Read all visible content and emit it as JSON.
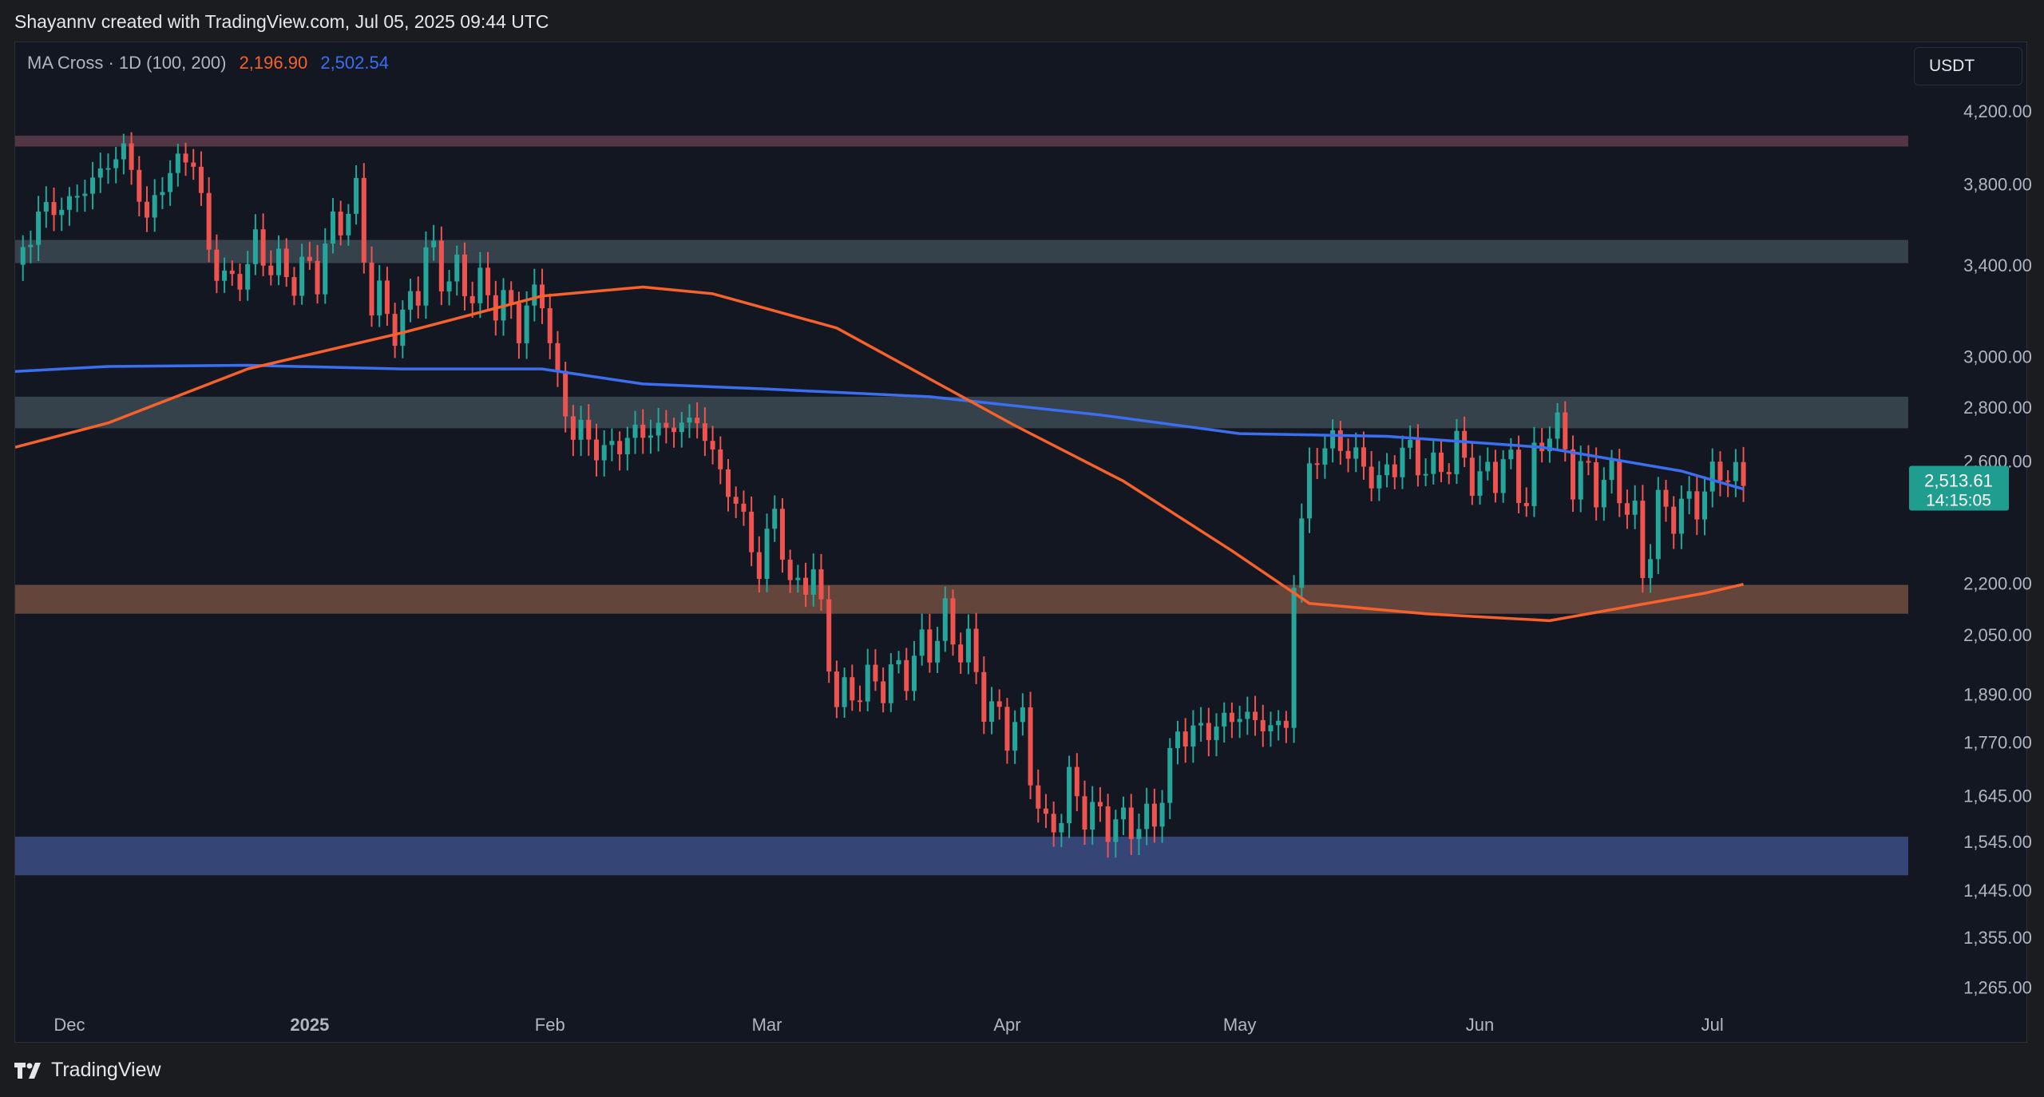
{
  "header": {
    "text": "Shayannv created with TradingView.com, Jul 05, 2025 09:44 UTC"
  },
  "indicator": {
    "name": "MA Cross · 1D (100, 200)",
    "ma100_value": "2,196.90",
    "ma200_value": "2,502.54"
  },
  "currency": "USDT",
  "footer": {
    "brand": "TradingView"
  },
  "colors": {
    "up": "#26a69a",
    "down": "#ef5350",
    "ma100": "#f7622c",
    "ma200": "#3c6ef0",
    "price_label": "#1f9d8f"
  },
  "chart_data": {
    "type": "candlestick",
    "y_scale": "log",
    "ylim": [
      1200,
      4450
    ],
    "x_range": [
      "2024-11-24",
      "2025-08-10"
    ],
    "y_ticks": [
      "4,200.00",
      "3,800.00",
      "3,400.00",
      "3,000.00",
      "2,800.00",
      "2,600.00",
      "2,200.00",
      "2,050.00",
      "1,890.00",
      "1,770.00",
      "1,645.00",
      "1,545.00",
      "1,445.00",
      "1,355.00",
      "1,265.00"
    ],
    "x_ticks": [
      {
        "label": "Dec",
        "date": "2024-12-01",
        "bold": false
      },
      {
        "label": "2025",
        "date": "2025-01-01",
        "bold": true
      },
      {
        "label": "Feb",
        "date": "2025-02-01",
        "bold": false
      },
      {
        "label": "Mar",
        "date": "2025-03-01",
        "bold": false
      },
      {
        "label": "Apr",
        "date": "2025-04-01",
        "bold": false
      },
      {
        "label": "May",
        "date": "2025-05-01",
        "bold": false
      },
      {
        "label": "Jun",
        "date": "2025-06-01",
        "bold": false
      },
      {
        "label": "Jul",
        "date": "2025-07-01",
        "bold": false
      }
    ],
    "zones": [
      {
        "low": 4000,
        "high": 4060,
        "color": "#5a3a4a"
      },
      {
        "low": 3410,
        "high": 3520,
        "color": "#3a4750"
      },
      {
        "low": 2720,
        "high": 2840,
        "color": "#3a4750"
      },
      {
        "low": 2110,
        "high": 2195,
        "color": "#6e4a3e"
      },
      {
        "low": 1475,
        "high": 1555,
        "color": "#394a80"
      }
    ],
    "price_label": {
      "price": "2,513.61",
      "countdown": "14:15:05",
      "value": 2513.61
    },
    "candle_closes": [
      {
        "date": "2024-11-24",
        "close": 3360
      },
      {
        "date": "2024-11-27",
        "close": 3650
      },
      {
        "date": "2024-12-01",
        "close": 3700
      },
      {
        "date": "2024-12-05",
        "close": 3860
      },
      {
        "date": "2024-12-08",
        "close": 3990
      },
      {
        "date": "2024-12-11",
        "close": 3620
      },
      {
        "date": "2024-12-14",
        "close": 3880
      },
      {
        "date": "2024-12-17",
        "close": 3950
      },
      {
        "date": "2024-12-19",
        "close": 3450
      },
      {
        "date": "2024-12-22",
        "close": 3300
      },
      {
        "date": "2024-12-25",
        "close": 3480
      },
      {
        "date": "2024-12-29",
        "close": 3350
      },
      {
        "date": "2025-01-02",
        "close": 3380
      },
      {
        "date": "2025-01-05",
        "close": 3650
      },
      {
        "date": "2025-01-07",
        "close": 3700
      },
      {
        "date": "2025-01-09",
        "close": 3250
      },
      {
        "date": "2025-01-13",
        "close": 3120
      },
      {
        "date": "2025-01-16",
        "close": 3450
      },
      {
        "date": "2025-01-19",
        "close": 3350
      },
      {
        "date": "2025-01-22",
        "close": 3300
      },
      {
        "date": "2025-01-25",
        "close": 3250
      },
      {
        "date": "2025-01-28",
        "close": 3150
      },
      {
        "date": "2025-01-31",
        "close": 3280
      },
      {
        "date": "2025-02-02",
        "close": 2870
      },
      {
        "date": "2025-02-04",
        "close": 2720
      },
      {
        "date": "2025-02-08",
        "close": 2630
      },
      {
        "date": "2025-02-12",
        "close": 2700
      },
      {
        "date": "2025-02-16",
        "close": 2720
      },
      {
        "date": "2025-02-20",
        "close": 2750
      },
      {
        "date": "2025-02-24",
        "close": 2500
      },
      {
        "date": "2025-02-26",
        "close": 2400
      },
      {
        "date": "2025-02-28",
        "close": 2230
      },
      {
        "date": "2025-03-02",
        "close": 2440
      },
      {
        "date": "2025-03-04",
        "close": 2180
      },
      {
        "date": "2025-03-07",
        "close": 2230
      },
      {
        "date": "2025-03-10",
        "close": 1870
      },
      {
        "date": "2025-03-13",
        "close": 1910
      },
      {
        "date": "2025-03-17",
        "close": 1930
      },
      {
        "date": "2025-03-20",
        "close": 1980
      },
      {
        "date": "2025-03-24",
        "close": 2080
      },
      {
        "date": "2025-03-27",
        "close": 2000
      },
      {
        "date": "2025-03-30",
        "close": 1830
      },
      {
        "date": "2025-04-03",
        "close": 1800
      },
      {
        "date": "2025-04-06",
        "close": 1550
      },
      {
        "date": "2025-04-09",
        "close": 1660
      },
      {
        "date": "2025-04-12",
        "close": 1600
      },
      {
        "date": "2025-04-16",
        "close": 1580
      },
      {
        "date": "2025-04-20",
        "close": 1590
      },
      {
        "date": "2025-04-23",
        "close": 1790
      },
      {
        "date": "2025-04-27",
        "close": 1800
      },
      {
        "date": "2025-05-01",
        "close": 1840
      },
      {
        "date": "2025-05-04",
        "close": 1810
      },
      {
        "date": "2025-05-07",
        "close": 1810
      },
      {
        "date": "2025-05-08",
        "close": 2200
      },
      {
        "date": "2025-05-10",
        "close": 2580
      },
      {
        "date": "2025-05-13",
        "close": 2680
      },
      {
        "date": "2025-05-16",
        "close": 2610
      },
      {
        "date": "2025-05-19",
        "close": 2520
      },
      {
        "date": "2025-05-22",
        "close": 2640
      },
      {
        "date": "2025-05-26",
        "close": 2560
      },
      {
        "date": "2025-05-29",
        "close": 2640
      },
      {
        "date": "2025-06-01",
        "close": 2520
      },
      {
        "date": "2025-06-04",
        "close": 2600
      },
      {
        "date": "2025-06-07",
        "close": 2480
      },
      {
        "date": "2025-06-10",
        "close": 2760
      },
      {
        "date": "2025-06-13",
        "close": 2560
      },
      {
        "date": "2025-06-16",
        "close": 2530
      },
      {
        "date": "2025-06-19",
        "close": 2520
      },
      {
        "date": "2025-06-21",
        "close": 2380
      },
      {
        "date": "2025-06-22",
        "close": 2240
      },
      {
        "date": "2025-06-24",
        "close": 2430
      },
      {
        "date": "2025-06-27",
        "close": 2430
      },
      {
        "date": "2025-06-30",
        "close": 2490
      },
      {
        "date": "2025-07-02",
        "close": 2580
      },
      {
        "date": "2025-07-05",
        "close": 2513.61
      }
    ],
    "ma100": [
      {
        "date": "2024-11-24",
        "value": 2650
      },
      {
        "date": "2024-12-06",
        "value": 2740
      },
      {
        "date": "2024-12-24",
        "value": 2950
      },
      {
        "date": "2025-01-13",
        "value": 3100
      },
      {
        "date": "2025-01-31",
        "value": 3260
      },
      {
        "date": "2025-02-13",
        "value": 3300
      },
      {
        "date": "2025-02-22",
        "value": 3270
      },
      {
        "date": "2025-03-10",
        "value": 3120
      },
      {
        "date": "2025-03-22",
        "value": 2910
      },
      {
        "date": "2025-04-02",
        "value": 2730
      },
      {
        "date": "2025-04-16",
        "value": 2530
      },
      {
        "date": "2025-04-30",
        "value": 2300
      },
      {
        "date": "2025-05-10",
        "value": 2140
      },
      {
        "date": "2025-05-25",
        "value": 2110
      },
      {
        "date": "2025-06-10",
        "value": 2090
      },
      {
        "date": "2025-06-20",
        "value": 2130
      },
      {
        "date": "2025-06-30",
        "value": 2170
      },
      {
        "date": "2025-07-05",
        "value": 2196.9
      }
    ],
    "ma200": [
      {
        "date": "2024-11-24",
        "value": 2940
      },
      {
        "date": "2024-12-06",
        "value": 2960
      },
      {
        "date": "2024-12-24",
        "value": 2965
      },
      {
        "date": "2025-01-13",
        "value": 2950
      },
      {
        "date": "2025-01-31",
        "value": 2950
      },
      {
        "date": "2025-02-13",
        "value": 2890
      },
      {
        "date": "2025-03-01",
        "value": 2870
      },
      {
        "date": "2025-03-22",
        "value": 2840
      },
      {
        "date": "2025-04-13",
        "value": 2770
      },
      {
        "date": "2025-05-01",
        "value": 2700
      },
      {
        "date": "2025-05-20",
        "value": 2690
      },
      {
        "date": "2025-06-09",
        "value": 2650
      },
      {
        "date": "2025-06-27",
        "value": 2565
      },
      {
        "date": "2025-07-05",
        "value": 2502.54
      }
    ]
  }
}
